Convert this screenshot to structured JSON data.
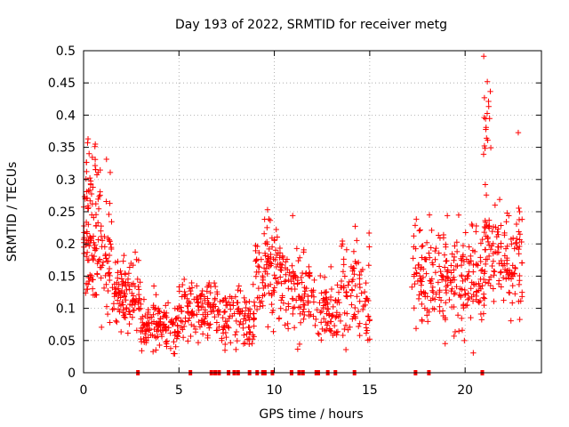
{
  "chart_data": {
    "type": "scatter",
    "title": "Day 193 of 2022, SRMTID for receiver metg",
    "xlabel": "GPS time / hours",
    "ylabel": "SRMTID / TECUs",
    "xlim": [
      0,
      24
    ],
    "ylim": [
      0,
      0.5
    ],
    "x_ticks": [
      0,
      5,
      10,
      15,
      20
    ],
    "x_tick_labels": [
      "0",
      "5",
      "10",
      "15",
      "20"
    ],
    "y_ticks": [
      0,
      0.05,
      0.1,
      0.15,
      0.2,
      0.25,
      0.3,
      0.35,
      0.4,
      0.45,
      0.5
    ],
    "y_tick_labels": [
      "0",
      "0.05",
      "0.1",
      "0.15",
      "0.2",
      "0.25",
      "0.3",
      "0.35",
      "0.4",
      "0.45",
      "0.5"
    ],
    "grid": true,
    "marker_color": "#ff0000",
    "series": [
      {
        "name": "SRMTID",
        "marker": "+",
        "clusters": [
          {
            "x_range": [
              0.0,
              1.5
            ],
            "y_mean": 0.2,
            "y_spread": 0.07,
            "count": 130
          },
          {
            "x_range": [
              0.1,
              0.7
            ],
            "y_mean": 0.3,
            "y_spread": 0.05,
            "count": 25
          },
          {
            "x_range": [
              1.5,
              3.0
            ],
            "y_mean": 0.12,
            "y_spread": 0.04,
            "count": 110
          },
          {
            "x_range": [
              3.0,
              5.0
            ],
            "y_mean": 0.075,
            "y_spread": 0.025,
            "count": 140
          },
          {
            "x_range": [
              5.0,
              7.0
            ],
            "y_mean": 0.1,
            "y_spread": 0.03,
            "count": 120
          },
          {
            "x_range": [
              7.0,
              9.0
            ],
            "y_mean": 0.085,
            "y_spread": 0.03,
            "count": 110
          },
          {
            "x_range": [
              9.0,
              10.5
            ],
            "y_mean": 0.16,
            "y_spread": 0.05,
            "count": 110
          },
          {
            "x_range": [
              10.5,
              12.0
            ],
            "y_mean": 0.12,
            "y_spread": 0.05,
            "count": 90
          },
          {
            "x_range": [
              12.0,
              13.5
            ],
            "y_mean": 0.1,
            "y_spread": 0.03,
            "count": 80
          },
          {
            "x_range": [
              13.5,
              15.0
            ],
            "y_mean": 0.13,
            "y_spread": 0.05,
            "count": 90
          },
          {
            "x_range": [
              17.2,
              19.0
            ],
            "y_mean": 0.15,
            "y_spread": 0.05,
            "count": 110
          },
          {
            "x_range": [
              19.0,
              21.0
            ],
            "y_mean": 0.14,
            "y_spread": 0.05,
            "count": 130
          },
          {
            "x_range": [
              21.0,
              23.0
            ],
            "y_mean": 0.18,
            "y_spread": 0.06,
            "count": 140
          },
          {
            "x_range": [
              20.95,
              21.35
            ],
            "y_mean": 0.38,
            "y_spread": 0.06,
            "count": 18
          }
        ],
        "zero_markers_x": [
          2.85,
          5.6,
          6.7,
          6.9,
          7.1,
          7.6,
          7.9,
          8.1,
          8.7,
          9.1,
          9.4,
          9.5,
          9.9,
          10.9,
          11.3,
          11.5,
          12.2,
          12.3,
          12.8,
          13.2,
          14.2,
          17.4,
          18.1,
          20.9
        ]
      }
    ]
  }
}
